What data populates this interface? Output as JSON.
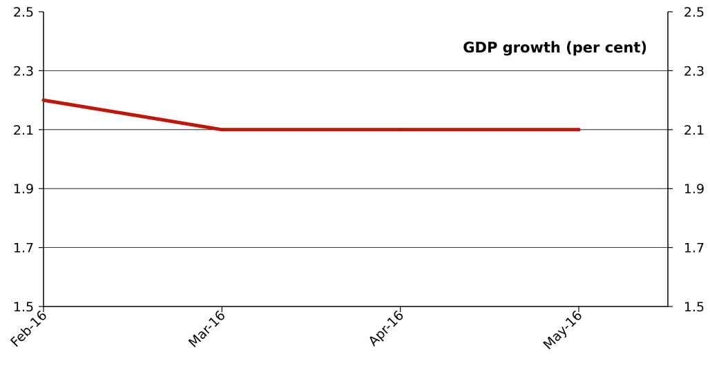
{
  "chart_data": {
    "type": "line",
    "title": "GDP growth (per cent)",
    "categories": [
      "Feb-16",
      "Mar-16",
      "Apr-16",
      "May-16"
    ],
    "series": [
      {
        "values": [
          2.2,
          2.1,
          2.1,
          2.1
        ],
        "color": "#c0160b"
      }
    ],
    "ylim": [
      1.5,
      2.5
    ],
    "yticks": [
      "1.5",
      "1.7",
      "1.9",
      "2.1",
      "2.3",
      "2.5"
    ],
    "secondary_yaxis": true,
    "grid": "horizontal",
    "legend": "none"
  }
}
